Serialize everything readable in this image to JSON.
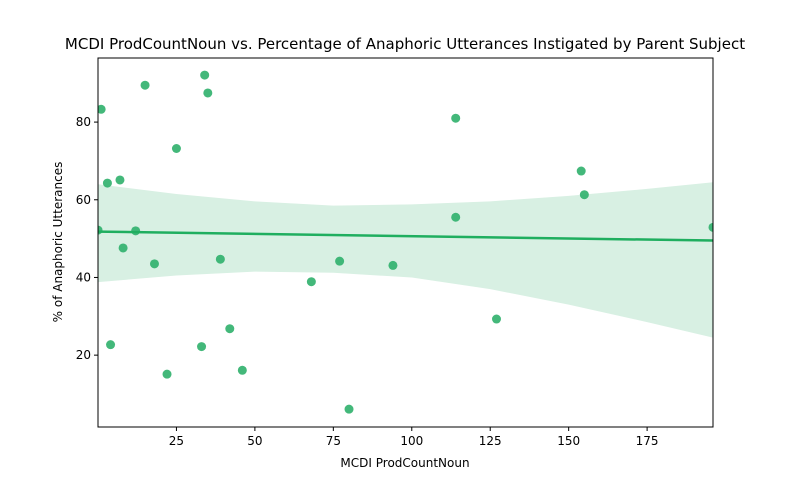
{
  "chart_data": {
    "type": "scatter",
    "title": "MCDI ProdCountNoun vs. Percentage of Anaphoric Utterances Instigated by Parent Subject",
    "xlabel": "MCDI ProdCountNoun",
    "ylabel": "% of Anaphoric Utterances",
    "xlim": [
      0,
      196
    ],
    "ylim": [
      1.5,
      96.5
    ],
    "xticks": [
      25,
      50,
      75,
      100,
      125,
      150,
      175
    ],
    "yticks": [
      20,
      40,
      60,
      80
    ],
    "grid": false,
    "legend": "none",
    "colors": {
      "points": "#2fb06b",
      "line": "#1fae5f",
      "band": "#d8f0e3"
    },
    "points": [
      {
        "x": 0,
        "y": 52.2
      },
      {
        "x": 1,
        "y": 83.3
      },
      {
        "x": 3,
        "y": 64.3
      },
      {
        "x": 4,
        "y": 22.7
      },
      {
        "x": 7,
        "y": 65.1
      },
      {
        "x": 8,
        "y": 47.6
      },
      {
        "x": 12,
        "y": 52.0
      },
      {
        "x": 15,
        "y": 89.5
      },
      {
        "x": 18,
        "y": 43.5
      },
      {
        "x": 22,
        "y": 15.1
      },
      {
        "x": 25,
        "y": 73.2
      },
      {
        "x": 33,
        "y": 22.2
      },
      {
        "x": 34,
        "y": 92.1
      },
      {
        "x": 35,
        "y": 87.5
      },
      {
        "x": 39,
        "y": 44.7
      },
      {
        "x": 42,
        "y": 26.8
      },
      {
        "x": 46,
        "y": 16.1
      },
      {
        "x": 68,
        "y": 38.9
      },
      {
        "x": 77,
        "y": 44.2
      },
      {
        "x": 80,
        "y": 6.1
      },
      {
        "x": 94,
        "y": 43.1
      },
      {
        "x": 114,
        "y": 81.0
      },
      {
        "x": 114,
        "y": 55.5
      },
      {
        "x": 127,
        "y": 29.3
      },
      {
        "x": 154,
        "y": 67.4
      },
      {
        "x": 155,
        "y": 61.3
      },
      {
        "x": 196,
        "y": 52.9
      }
    ],
    "regression": {
      "x": [
        0,
        196
      ],
      "y": [
        51.8,
        49.5
      ]
    },
    "confidence_band": {
      "x": [
        0,
        25,
        50,
        75,
        100,
        125,
        150,
        175,
        196
      ],
      "upper": [
        64.0,
        61.5,
        59.6,
        58.5,
        58.8,
        59.6,
        61.0,
        62.8,
        64.5
      ],
      "lower": [
        38.8,
        40.5,
        41.5,
        41.2,
        40.0,
        37.0,
        33.0,
        28.5,
        24.5
      ]
    }
  }
}
